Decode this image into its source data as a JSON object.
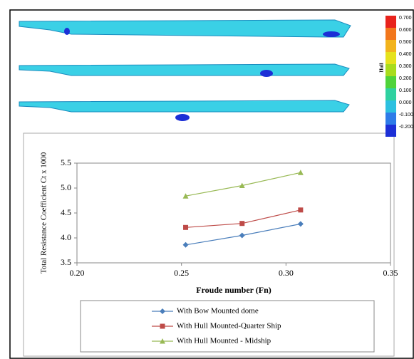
{
  "contour_legend": {
    "title": "Hull",
    "labels": [
      "0.700",
      "0.600",
      "0.500",
      "0.400",
      "0.300",
      "0.200",
      "0.100",
      "0.000",
      "-0.100",
      "-0.200"
    ],
    "colors": [
      "#e8231c",
      "#f2771c",
      "#f2b31c",
      "#e6e21c",
      "#a8dc1c",
      "#4fd33a",
      "#2fd1a0",
      "#2cc0e0",
      "#2e7be8",
      "#1c2fd6"
    ]
  },
  "chart_data": {
    "type": "line",
    "y_label": "Total Resistance Coefficient Ct x 1000",
    "x_label": "Froude number  (Fn)",
    "x": [
      0.252,
      0.279,
      0.307
    ],
    "series": [
      {
        "name": "With Bow Mounted dome",
        "color": "#4a7ebb",
        "marker": "diamond",
        "values": [
          3.86,
          4.05,
          4.28
        ]
      },
      {
        "name": "With Hull Mounted-Quarter Ship",
        "color": "#be4b48",
        "marker": "square",
        "values": [
          4.21,
          4.29,
          4.56
        ]
      },
      {
        "name": "With Hull Mounted - Midship",
        "color": "#98b954",
        "marker": "triangle",
        "values": [
          4.84,
          5.05,
          5.31
        ]
      }
    ],
    "xlim": [
      0.2,
      0.35
    ],
    "xticks": [
      {
        "value": 0.2,
        "label": "0.20"
      },
      {
        "value": 0.25,
        "label": "0.25"
      },
      {
        "value": 0.3,
        "label": "0.30"
      },
      {
        "value": 0.35,
        "label": "0.35"
      }
    ],
    "ylim": [
      3.5,
      5.5
    ],
    "yticks": [
      3.5,
      {
        "value": 4,
        "label": "4.0"
      },
      4.5,
      {
        "value": 5,
        "label": "5.0"
      },
      5.5
    ]
  }
}
